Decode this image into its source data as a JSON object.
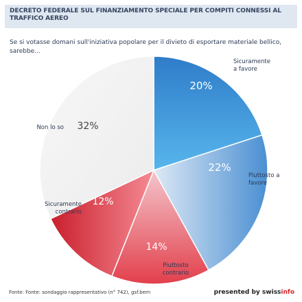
{
  "header": {
    "title": "DECRETO FEDERALE SUL FINANZIAMENTO SPECIALE PER COMPITI CONNESSI AL TRAFFICO AEREO"
  },
  "question": "Se si votasse domani sull'iniziativa popolare per il divieto di esportare materiale bellico, sarebbe...",
  "footer": {
    "source": "Fonte: Fonte: sondaggio rappresentativo (n° 742), gsf.bern",
    "brand_prefix": "presented by swiss",
    "brand_accent": "info"
  },
  "chart_data": {
    "type": "pie",
    "categories": [
      "Sicuramente a favore",
      "Piuttosto a favore",
      "Piuttosto contrario",
      "Sicuramente contrario",
      "Non lo so"
    ],
    "values": [
      20,
      22,
      14,
      12,
      32
    ],
    "value_labels": [
      "20%",
      "22%",
      "14%",
      "12%",
      "32%"
    ],
    "category_label_lines": [
      [
        "Sicuramente",
        "a favore"
      ],
      [
        "Piuttosto a",
        "favore"
      ],
      [
        "Piuttosto",
        "contrario"
      ],
      [
        "Sicuramente",
        "contrario"
      ],
      [
        "Non lo so"
      ]
    ],
    "colors": [
      "#3d8fd6",
      "#6fb0e4",
      "#e0454f",
      "#cc2531",
      "#f2f2f2"
    ]
  }
}
